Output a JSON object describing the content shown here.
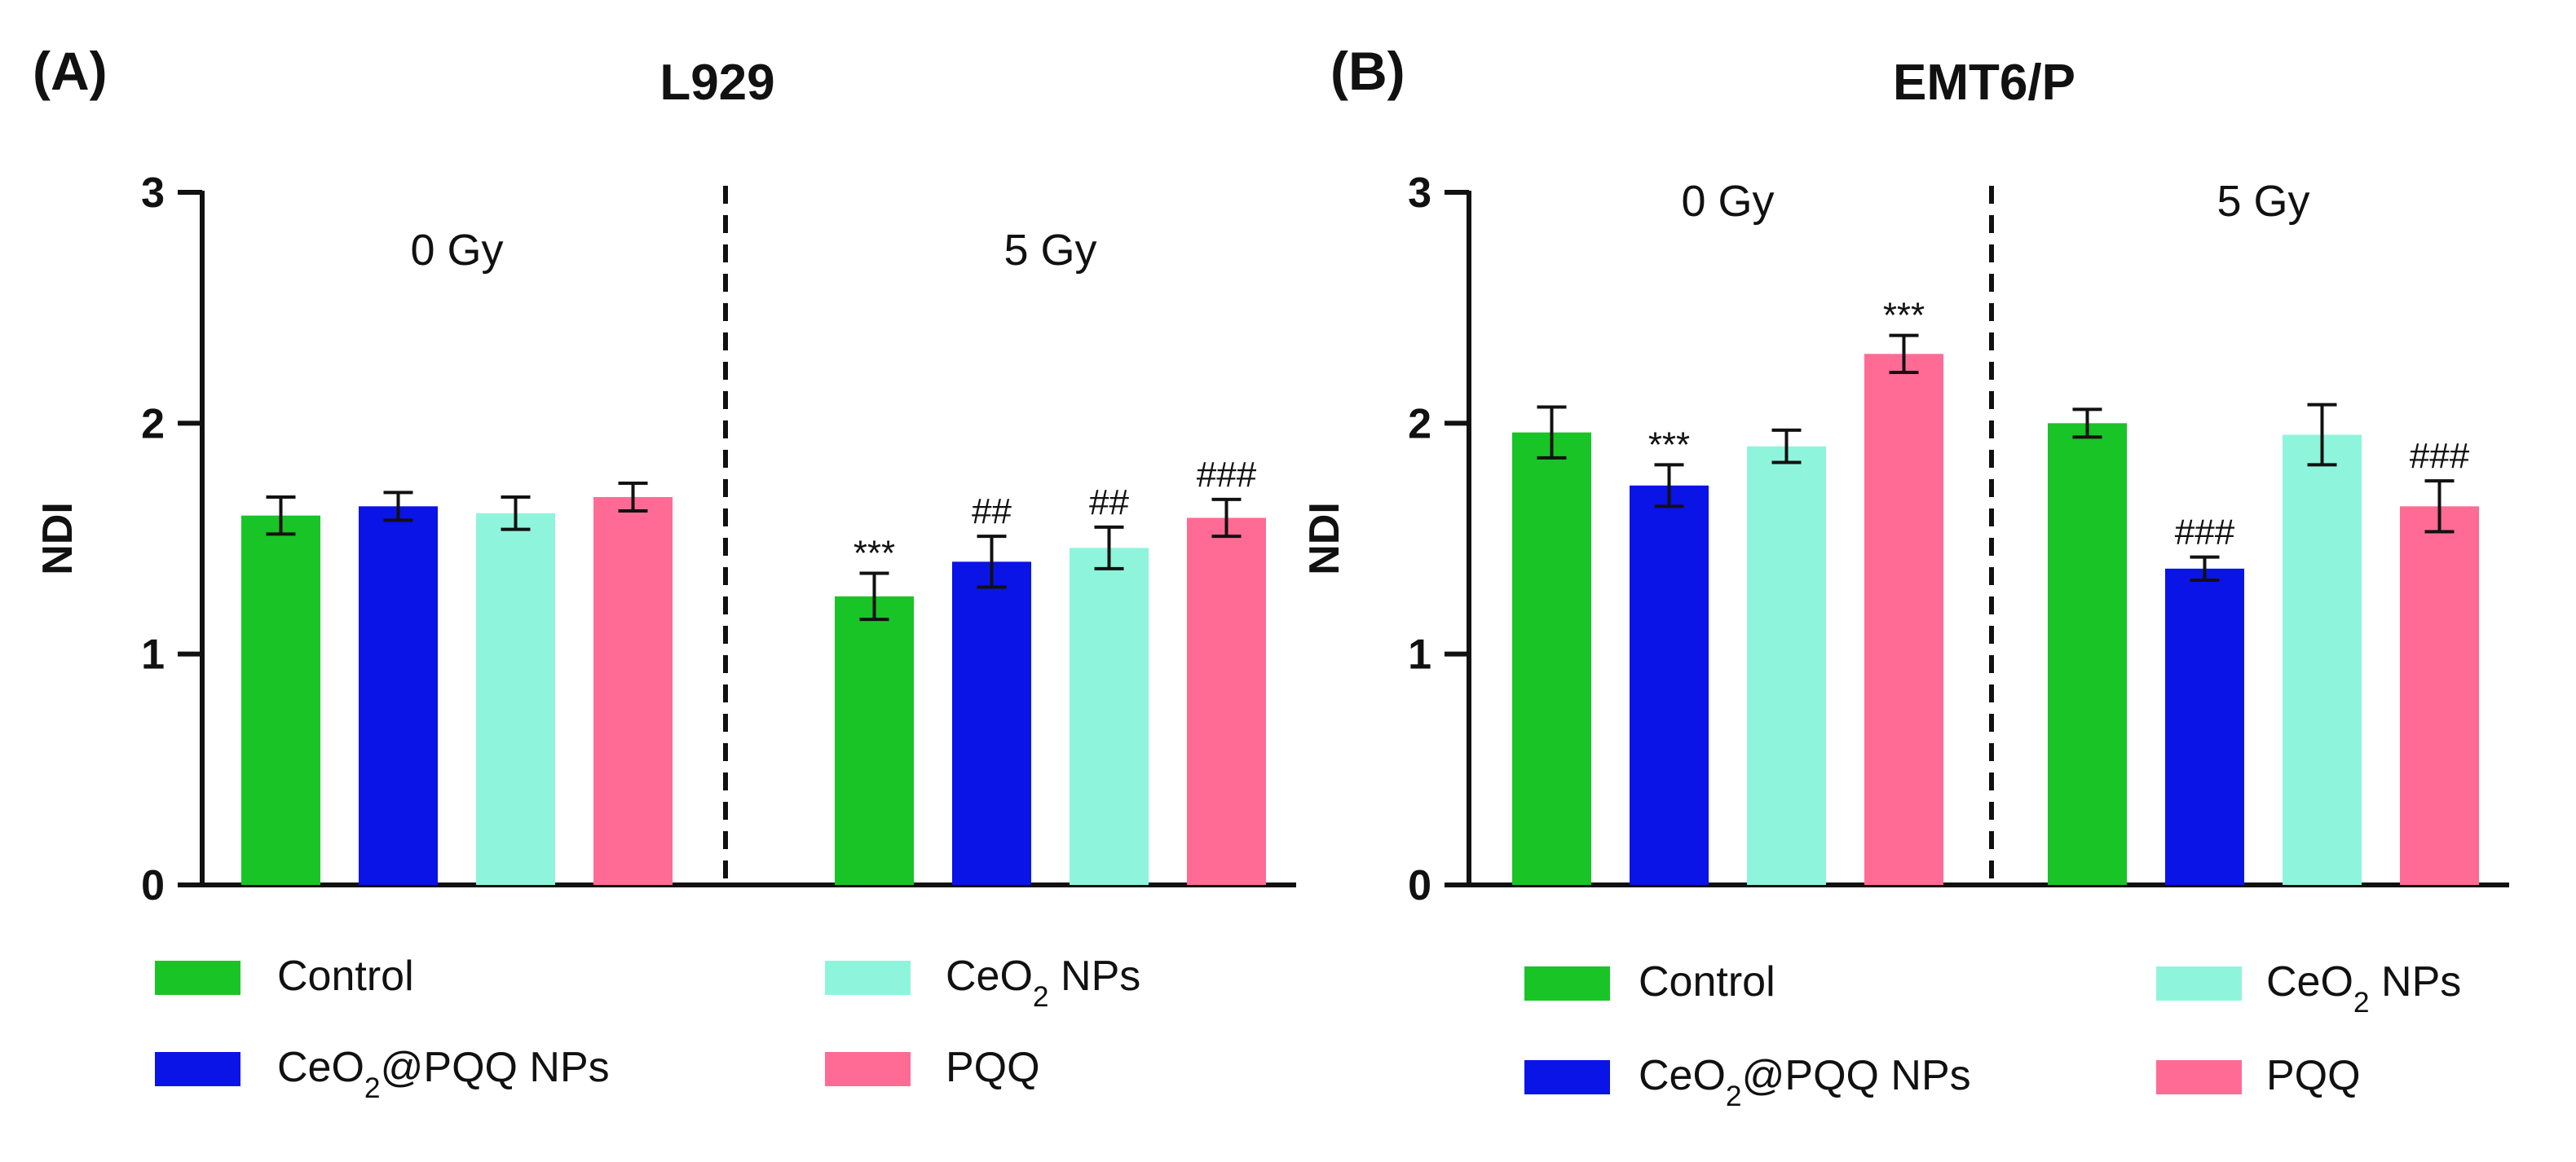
{
  "figure": {
    "panels": [
      {
        "label": "(A)",
        "title": "L929",
        "legend_labels": [
          "Control",
          "CeO2@PQQ NPs",
          "CeO2 NPs",
          "PQQ"
        ]
      },
      {
        "label": "(B)",
        "title": "EMT6/P",
        "legend_labels": [
          "Control",
          "CeO2@PQQ NPs",
          "CeO2 NPs",
          "PQQ"
        ]
      }
    ]
  },
  "chart_data": [
    {
      "type": "bar",
      "title": "L929",
      "panel_label": "(A)",
      "xlabel": "",
      "ylabel": "NDI",
      "ylim": [
        0,
        3
      ],
      "yticks": [
        0,
        1,
        2,
        3
      ],
      "groups": [
        "0 Gy",
        "5 Gy"
      ],
      "series": [
        {
          "name": "Control",
          "color": "#19c427",
          "values": [
            1.6,
            1.25
          ],
          "errors": [
            0.08,
            0.1
          ],
          "annotations": [
            "",
            "***"
          ]
        },
        {
          "name": "CeO2@PQQ NPs",
          "color": "#0a14e6",
          "values": [
            1.64,
            1.4
          ],
          "errors": [
            0.06,
            0.11
          ],
          "annotations": [
            "",
            "##"
          ]
        },
        {
          "name": "CeO2 NPs",
          "color": "#8ef5dc",
          "values": [
            1.61,
            1.46
          ],
          "errors": [
            0.07,
            0.09
          ],
          "annotations": [
            "",
            "##"
          ]
        },
        {
          "name": "PQQ",
          "color": "#ff6b95",
          "values": [
            1.68,
            1.59
          ],
          "errors": [
            0.06,
            0.08
          ],
          "annotations": [
            "",
            "###"
          ]
        }
      ]
    },
    {
      "type": "bar",
      "title": "EMT6/P",
      "panel_label": "(B)",
      "xlabel": "",
      "ylabel": "NDI",
      "ylim": [
        0,
        3
      ],
      "yticks": [
        0,
        1,
        2,
        3
      ],
      "groups": [
        "0 Gy",
        "5 Gy"
      ],
      "series": [
        {
          "name": "Control",
          "color": "#19c427",
          "values": [
            1.96,
            2.0
          ],
          "errors": [
            0.11,
            0.06
          ],
          "annotations": [
            "",
            ""
          ]
        },
        {
          "name": "CeO2@PQQ NPs",
          "color": "#0a14e6",
          "values": [
            1.73,
            1.37
          ],
          "errors": [
            0.09,
            0.05
          ],
          "annotations": [
            "***",
            "###"
          ]
        },
        {
          "name": "CeO2 NPs",
          "color": "#8ef5dc",
          "values": [
            1.9,
            1.95
          ],
          "errors": [
            0.07,
            0.13
          ],
          "annotations": [
            "",
            ""
          ]
        },
        {
          "name": "PQQ",
          "color": "#ff6b95",
          "values": [
            2.3,
            1.64
          ],
          "errors": [
            0.08,
            0.11
          ],
          "annotations": [
            "***",
            "###"
          ]
        }
      ]
    }
  ]
}
